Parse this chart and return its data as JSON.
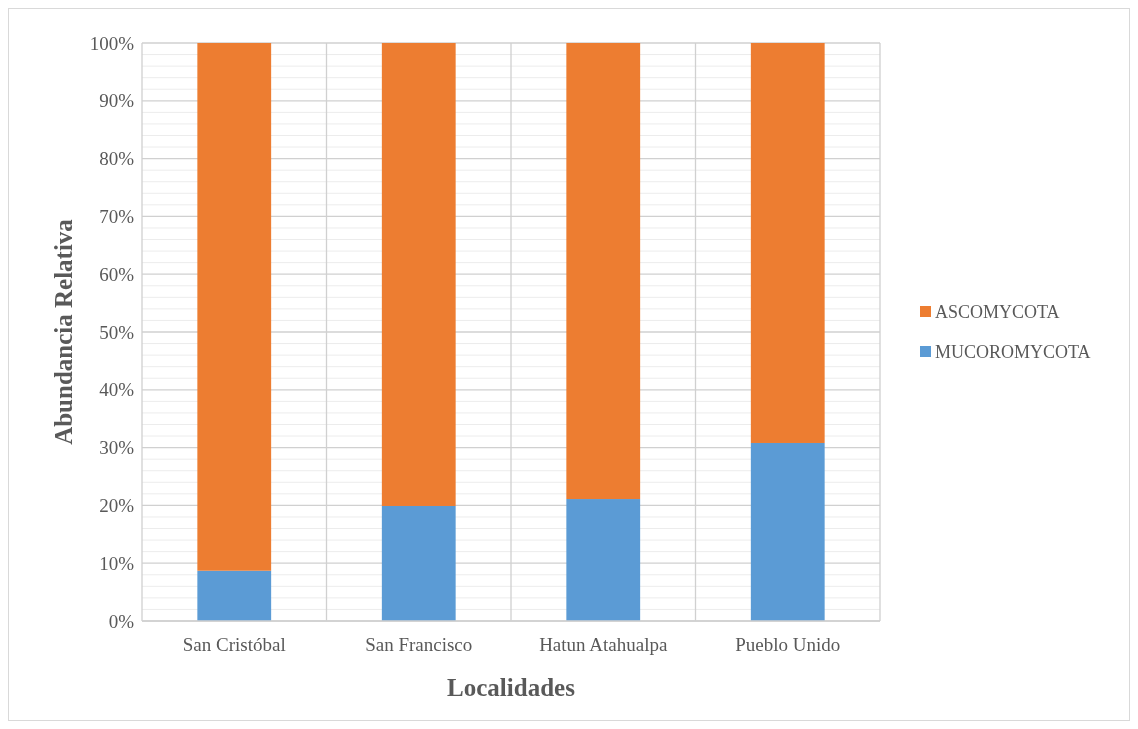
{
  "chart_data": {
    "type": "bar",
    "stacked": true,
    "xlabel": "Localidades",
    "ylabel": "Abundancia Relativa",
    "categories": [
      "San Cristóbal",
      "San Francisco",
      "Hatun Atahualpa",
      "Pueblo Unido"
    ],
    "series": [
      {
        "name": "MUCOROMYCOTA",
        "color": "#5b9bd5",
        "values": [
          8.7,
          19.9,
          21.1,
          30.8
        ]
      },
      {
        "name": "ASCOMYCOTA",
        "color": "#ed7d31",
        "values": [
          91.3,
          80.1,
          78.9,
          69.2
        ]
      }
    ],
    "ylim": [
      0,
      100
    ],
    "yticks": [
      {
        "value": 0,
        "label": "0%"
      },
      {
        "value": 2,
        "label": null
      },
      {
        "value": 4,
        "label": null
      },
      {
        "value": 6,
        "label": null
      },
      {
        "value": 8,
        "label": null
      },
      {
        "value": 10,
        "label": "10%"
      },
      {
        "value": 12,
        "label": null
      },
      {
        "value": 14,
        "label": null
      },
      {
        "value": 16,
        "label": null
      },
      {
        "value": 18,
        "label": null
      },
      {
        "value": 20,
        "label": "20%"
      },
      {
        "value": 22,
        "label": null
      },
      {
        "value": 24,
        "label": null
      },
      {
        "value": 26,
        "label": null
      },
      {
        "value": 28,
        "label": null
      },
      {
        "value": 30,
        "label": "30%"
      },
      {
        "value": 32,
        "label": null
      },
      {
        "value": 34,
        "label": null
      },
      {
        "value": 36,
        "label": null
      },
      {
        "value": 38,
        "label": null
      },
      {
        "value": 40,
        "label": "40%"
      },
      {
        "value": 42,
        "label": null
      },
      {
        "value": 44,
        "label": null
      },
      {
        "value": 46,
        "label": null
      },
      {
        "value": 48,
        "label": null
      },
      {
        "value": 50,
        "label": "50%"
      },
      {
        "value": 52,
        "label": null
      },
      {
        "value": 54,
        "label": null
      },
      {
        "value": 56,
        "label": null
      },
      {
        "value": 58,
        "label": null
      },
      {
        "value": 60,
        "label": "60%"
      },
      {
        "value": 62,
        "label": null
      },
      {
        "value": 64,
        "label": null
      },
      {
        "value": 66,
        "label": null
      },
      {
        "value": 68,
        "label": null
      },
      {
        "value": 70,
        "label": "70%"
      },
      {
        "value": 72,
        "label": null
      },
      {
        "value": 74,
        "label": null
      },
      {
        "value": 76,
        "label": null
      },
      {
        "value": 78,
        "label": null
      },
      {
        "value": 80,
        "label": "80%"
      },
      {
        "value": 82,
        "label": null
      },
      {
        "value": 84,
        "label": null
      },
      {
        "value": 86,
        "label": null
      },
      {
        "value": 88,
        "label": null
      },
      {
        "value": 90,
        "label": "90%"
      },
      {
        "value": 92,
        "label": null
      },
      {
        "value": 94,
        "label": null
      },
      {
        "value": 96,
        "label": null
      },
      {
        "value": 98,
        "label": null
      },
      {
        "value": 100,
        "label": "100%"
      }
    ],
    "grid": true,
    "legend": "right"
  }
}
